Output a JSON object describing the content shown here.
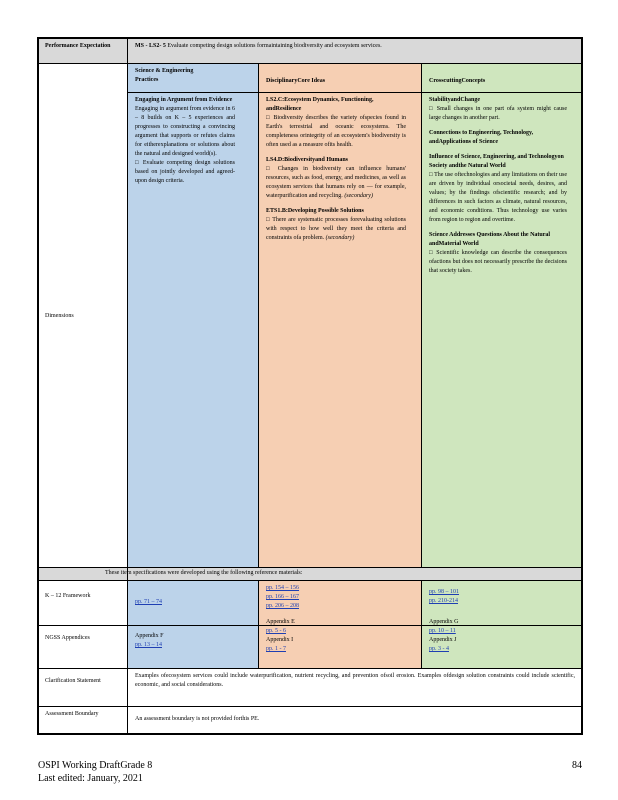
{
  "performance_expectation": {
    "label": "Performance Expectation",
    "code": "MS - LS2- 5",
    "text": "Evaluate competing design solutions formaintaining biodiversity and ecosystem services."
  },
  "dimensions": {
    "label": "Dimensions",
    "headers": {
      "sep": "Science & Engineering Practices",
      "dci": "DisciplinaryCore Ideas",
      "ccc": "CrosscuttingConcepts"
    },
    "sep": {
      "title": "Engaging in Argument from Evidence",
      "intro": "Engaging in argument from evidence in 6 – 8 builds on K – 5 experiences and progresses to constructing a convincing argument that supports or refutes claims for eitherexplanations or solutions about the natural and designed world(s).",
      "bullet": "Evaluate competing design solutions based on jointly developed and agreed- upon design criteria."
    },
    "dci": [
      {
        "title": "LS2.C:Ecosystem Dynamics, Functioning, andResilience",
        "bullet": "Biodiversity describes the variety ofspecies found in Earth's terrestrial and oceanic ecosystems. The completeness orintegrity of an ecosystem's biodiversity is often used as a measure ofits health.",
        "tag": ""
      },
      {
        "title": "LS4.D:Biodiversityand Humans",
        "bullet": "Changes in biodiversity can influence humans' resources, such as food, energy, and medicines, as well as ecosystem services that humans rely on — for example, waterpurification and recycling.",
        "tag": "(secondary)"
      },
      {
        "title": "ETS1.B:Developing Possible Solutions",
        "bullet": "There are systematic processes forevaluating solutions with respect to how well they meet the criteria and constraints ofa problem.",
        "tag": "(secondary)"
      }
    ],
    "ccc": [
      {
        "title": "StabilityandChange",
        "bullet": "Small changes in one part ofa system might cause large changes in another part."
      },
      {
        "title": "Connections to Engineering, Technology, andApplications of Science",
        "bullet": ""
      },
      {
        "title": "Influence of Science, Engineering, and Technologyon Society andthe Natural World",
        "bullet": "The use oftechnologies and any limitations on their use are driven by individual orsocietal needs, desires, and values; by the findings ofscientific research; and by differences in such factors as climate, natural resources, and economic conditions. Thus technology use varies from region to region and overtime."
      },
      {
        "title": "Science Addresses Questions About the Natural andMaterial World",
        "bullet": "Scientific knowledge can describe the consequences ofactions but does not necessarily prescribe the decisions that society takes."
      }
    ]
  },
  "refs_banner": "These item specifications were developed using the following reference materials:",
  "k12": {
    "label": "K – 12 Framework",
    "sep_pages": "pp. 71 – 74",
    "dci_pages": [
      "pp. 154 – 156",
      "pp. 166 – 167",
      "pp. 206 – 208"
    ],
    "ccc_pages": [
      "pp. 98 – 101",
      "pp. 210-214"
    ]
  },
  "ngss": {
    "label": "NGSS Appendices",
    "sep_appendix": "Appendix F",
    "sep_pages": "pp. 13 – 14",
    "dci_items": [
      {
        "appendix": "Appendix E",
        "pages": "pp. 5 - 6"
      },
      {
        "appendix": "Appendix I",
        "pages": "pp. 1 - 7"
      }
    ],
    "ccc_items": [
      {
        "appendix": "Appendix G",
        "pages": "pp. 10 – 11"
      },
      {
        "appendix": "Appendix J",
        "pages": "pp. 3 - 4"
      }
    ]
  },
  "clarification": {
    "label": "Clarification Statement",
    "text": "Examples ofecosystem services could include waterpurification, nutrient recycling, and prevention ofsoil erosion. Examples ofdesign solution constraints could include scientific, economic, and social considerations."
  },
  "assessment": {
    "label": "Assessment Boundary",
    "text": "An assessment boundary is not provided forthis PE."
  },
  "footer": {
    "line1": "OSPI Working DraftGrade 8",
    "line2": "Last edited: January, 2021",
    "page": "84"
  }
}
